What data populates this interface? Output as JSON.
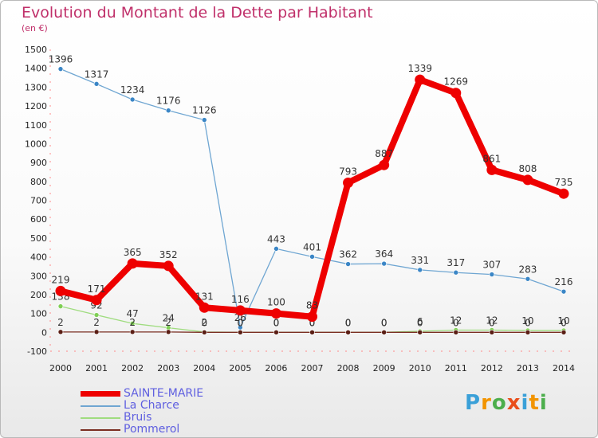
{
  "header": {
    "title": "Evolution du Montant de la Dette par Habitant",
    "subtitle": "(en €)"
  },
  "logo": {
    "letters": [
      "P",
      "r",
      "o",
      "x",
      "i",
      "t",
      "i"
    ],
    "colors": [
      "#3aa0d8",
      "#f29400",
      "#4cae4c",
      "#e94e1b",
      "#3aa0d8",
      "#f29400",
      "#4cae4c"
    ]
  },
  "chart_data": {
    "type": "line",
    "title": "Evolution du Montant de la Dette par Habitant",
    "subtitle": "(en €)",
    "x": [
      "2000",
      "2001",
      "2002",
      "2003",
      "2004",
      "2005",
      "2006",
      "2007",
      "2008",
      "2009",
      "2010",
      "2011",
      "2012",
      "2013",
      "2014"
    ],
    "ylim": [
      -100,
      1500
    ],
    "yticks": [
      -100,
      0,
      100,
      200,
      300,
      400,
      500,
      600,
      700,
      800,
      900,
      1000,
      1100,
      1200,
      1300,
      1400,
      1500
    ],
    "grid": false,
    "legend_position": "bottom-left",
    "series": [
      {
        "name": "La Charce",
        "color": "#6fa6d2",
        "marker": "#3b86c6",
        "values": [
          1396,
          1317,
          1234,
          1176,
          1126,
          26,
          443,
          401,
          362,
          364,
          331,
          317,
          307,
          283,
          216
        ],
        "labels": [
          "1396",
          "1317",
          "1234",
          "1176",
          "1126",
          "26",
          "443",
          "401",
          "362",
          "364",
          "331",
          "317",
          "307",
          "283",
          "216"
        ]
      },
      {
        "name": "Bruis",
        "color": "#9fdc7f",
        "marker": "#7fcf55",
        "values": [
          138,
          92,
          47,
          24,
          2,
          0,
          0,
          0,
          0,
          0,
          6,
          12,
          12,
          10,
          10
        ],
        "labels": [
          "138",
          "92",
          "47",
          "24",
          "2",
          "0",
          "0",
          "0",
          "0",
          "0",
          "6",
          "12",
          "12",
          "10",
          "10"
        ]
      },
      {
        "name": "Pommerol",
        "color": "#7a2e22",
        "marker": "#5a1e14",
        "values": [
          2,
          2,
          2,
          2,
          0,
          0,
          0,
          0,
          0,
          0,
          0,
          0,
          0,
          0,
          0
        ],
        "labels": [
          "2",
          "2",
          "2",
          "2",
          "0",
          "0",
          "0",
          "0",
          "0",
          "0",
          "0",
          "0",
          "0",
          "0",
          "0"
        ]
      },
      {
        "name": "SAINTE-MARIE",
        "color": "#ee0000",
        "marker": "#ee0000",
        "values": [
          219,
          171,
          365,
          352,
          131,
          116,
          100,
          83,
          793,
          887,
          1339,
          1269,
          861,
          808,
          735
        ],
        "labels": [
          "219",
          "171",
          "365",
          "352",
          "131",
          "116",
          "100",
          "83",
          "793",
          "887",
          "1339",
          "1269",
          "861",
          "808",
          "735"
        ]
      }
    ],
    "legend_order": [
      "SAINTE-MARIE",
      "La Charce",
      "Bruis",
      "Pommerol"
    ]
  }
}
